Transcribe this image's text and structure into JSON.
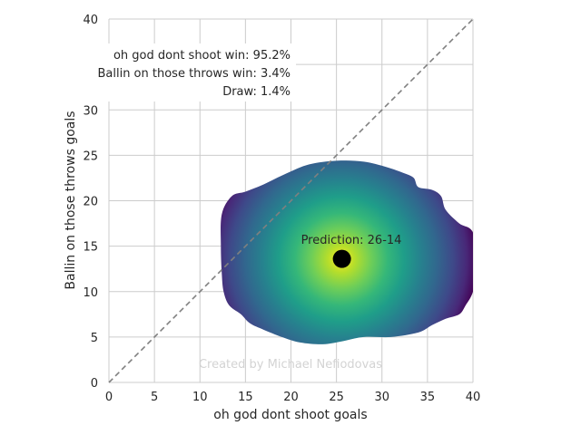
{
  "chart_data": {
    "type": "heatmap",
    "title": "",
    "xlabel": "oh god dont shoot goals",
    "ylabel": "Ballin on those throws goals",
    "xlim": [
      0,
      40
    ],
    "ylim": [
      0,
      40
    ],
    "xticks": [
      0,
      5,
      10,
      15,
      20,
      25,
      30,
      35,
      40
    ],
    "yticks": [
      0,
      5,
      10,
      15,
      20,
      25,
      30,
      35,
      40
    ],
    "grid": true,
    "colormap": "viridis",
    "density": {
      "center": [
        25.6,
        13.6
      ],
      "x_extent": [
        12,
        40
      ],
      "y_extent": [
        4,
        24.5
      ]
    },
    "reference_line": {
      "style": "dashed",
      "from": [
        0,
        0
      ],
      "to": [
        40,
        40
      ]
    },
    "prediction_point": {
      "x": 25.6,
      "y": 13.6
    },
    "annotations": {
      "prediction": "Prediction: 26-14",
      "probabilities": [
        "oh god dont shoot win: 95.2%",
        "Ballin on those throws win: 3.4%",
        "Draw: 1.4%"
      ],
      "watermark": "Created by Michael Nefiodovas"
    },
    "colors": {
      "grid": "#cccccc",
      "reference_line": "#808080",
      "point": "#000000",
      "watermark": "#d3d3d3"
    }
  }
}
